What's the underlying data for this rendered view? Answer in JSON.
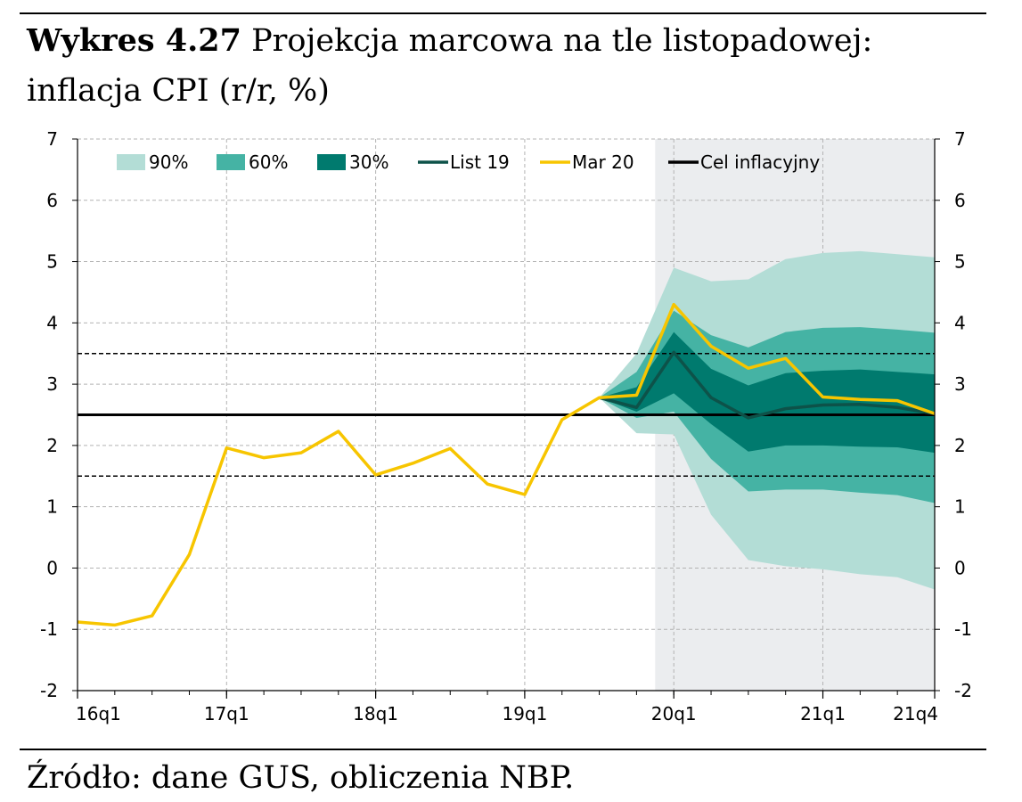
{
  "figure": {
    "label": "Wykres 4.27",
    "title": "Projekcja marcowa na tle listopadowej: inflacja CPI (r/r, %)",
    "source": "Źródło: dane GUS, obliczenia NBP."
  },
  "chart_data": {
    "type": "line",
    "y_ticks": [
      "-2",
      "-1",
      "0",
      "1",
      "2",
      "3",
      "4",
      "5",
      "6",
      "7"
    ],
    "ylim": [
      -2,
      7
    ],
    "x_ticks": [
      {
        "label": "16q1",
        "index": 0
      },
      {
        "label": "17q1",
        "index": 4
      },
      {
        "label": "18q1",
        "index": 8
      },
      {
        "label": "19q1",
        "index": 12
      },
      {
        "label": "20q1",
        "index": 16
      },
      {
        "label": "21q1",
        "index": 20
      },
      {
        "label": "21q4",
        "index": 23
      }
    ],
    "projection_shading_start": 15.5,
    "legend": {
      "fan90": "90%",
      "fan60": "60%",
      "fan30": "30%",
      "list19": "List 19",
      "mar20": "Mar 20",
      "target": "Cel inflacyjny"
    },
    "colors": {
      "fan90": "#b3ddd6",
      "fan60": "#45b3a4",
      "fan30": "#007a6e",
      "list19": "#0d5249",
      "mar20": "#f7c500",
      "target": "#000000",
      "shade": "#ebedef",
      "grid": "#b3b3b3"
    },
    "target_lines": {
      "target": 2.5,
      "upper": 3.5,
      "lower": 1.5
    },
    "mar20": {
      "x": [
        0,
        1,
        2,
        3,
        4,
        5,
        6,
        7,
        8,
        9,
        10,
        11,
        12,
        13,
        14,
        15,
        16,
        17,
        18,
        19,
        20,
        21,
        22,
        23
      ],
      "y": [
        -0.88,
        -0.93,
        -0.78,
        0.22,
        1.96,
        1.8,
        1.88,
        2.23,
        1.52,
        1.71,
        1.95,
        1.37,
        1.2,
        2.42,
        2.78,
        2.82,
        4.3,
        3.62,
        3.26,
        3.42,
        2.79,
        2.75,
        2.73,
        2.52
      ]
    },
    "list19": {
      "x": [
        14,
        15,
        16,
        17,
        18,
        19,
        20,
        21,
        22,
        23
      ],
      "y": [
        2.78,
        2.62,
        3.52,
        2.78,
        2.45,
        2.6,
        2.66,
        2.67,
        2.62,
        2.52
      ]
    },
    "fans": {
      "x": [
        14,
        15,
        16,
        17,
        18,
        19,
        20,
        21,
        22,
        23
      ],
      "fan90": {
        "low": [
          2.78,
          2.2,
          2.18,
          0.87,
          0.13,
          0.03,
          -0.02,
          -0.1,
          -0.15,
          -0.35
        ],
        "high": [
          2.78,
          3.5,
          4.9,
          4.68,
          4.71,
          5.04,
          5.14,
          5.17,
          5.12,
          5.07
        ]
      },
      "fan60": {
        "low": [
          2.78,
          2.45,
          2.55,
          1.78,
          1.25,
          1.28,
          1.28,
          1.23,
          1.19,
          1.06
        ],
        "high": [
          2.78,
          3.2,
          4.2,
          3.8,
          3.6,
          3.85,
          3.92,
          3.93,
          3.89,
          3.84
        ]
      },
      "fan30": {
        "low": [
          2.78,
          2.55,
          2.85,
          2.35,
          1.9,
          2.0,
          2.0,
          1.98,
          1.97,
          1.88
        ],
        "high": [
          2.78,
          2.95,
          3.85,
          3.25,
          2.98,
          3.18,
          3.22,
          3.24,
          3.2,
          3.16
        ]
      }
    }
  }
}
